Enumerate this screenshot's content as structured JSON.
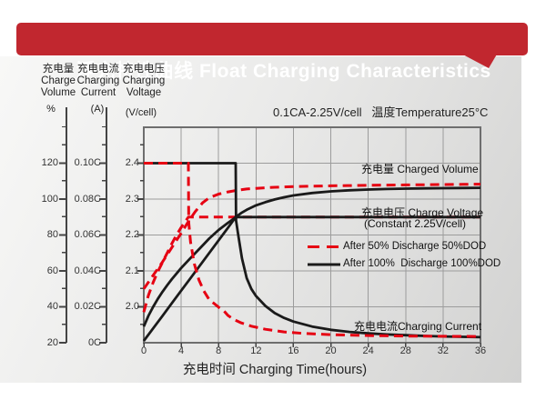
{
  "banner": {
    "title": "浮充特性曲线 Float Charging Characteristics",
    "bg_color": "#c1272f",
    "text_color": "#ffffff"
  },
  "axis_headers": {
    "volume": {
      "zh": "充电量",
      "en1": "Charge",
      "en2": "Volume",
      "unit": "%"
    },
    "current": {
      "zh": "充电电流",
      "en1": "Charging",
      "en2": "Current",
      "unit": "(A)"
    },
    "voltage": {
      "zh": "充电电压",
      "en1": "Charging",
      "en2": "Voltage",
      "unit": "(V/cell)"
    }
  },
  "condition_label": "0.1CA-2.25V/cell   温度Temperature25°C",
  "chart_data": {
    "type": "line",
    "title": "浮充特性曲线 Float Charging Characteristics",
    "x_axis": {
      "label": "充电时间 Charging Time(hours)",
      "range": [
        0,
        36
      ],
      "ticks": [
        0,
        4,
        8,
        12,
        16,
        20,
        24,
        28,
        32,
        36
      ],
      "grid": true
    },
    "y_axes": {
      "volume_pct": {
        "ticks": [
          120,
          100,
          80,
          60,
          40,
          20
        ],
        "range_at_plot": [
          20,
          140
        ]
      },
      "current_C": {
        "ticks": [
          "0.10C",
          "0.08C",
          "0.06C",
          "0.04C",
          "0.02C",
          "0C"
        ],
        "range_at_plot": [
          0,
          0.12
        ]
      },
      "voltage_V": {
        "ticks": [
          2.4,
          2.3,
          2.2,
          2.1,
          2.0
        ],
        "range_at_plot": [
          1.9,
          2.5
        ]
      }
    },
    "annotations": {
      "charged_volume": "充电量 Charged Volume",
      "charge_voltage": "充电电压 Charge Voltage",
      "charge_voltage_sub": "(Constant 2.25V/cell)",
      "charging_current": "充电电流Charging Current"
    },
    "legend": [
      {
        "label": "After 50% Discharge 50%DOD",
        "color": "#e60012",
        "dash": true
      },
      {
        "label": "After 100%  Discharge 100%DOD",
        "color": "#1a1a1a",
        "dash": false
      }
    ],
    "colors": {
      "red_curve": "#e60012",
      "black_curve": "#1a1a1a",
      "grid": "#9c9c9c",
      "frame": "#6e6e6e",
      "axis": "#444444"
    },
    "series": [
      {
        "name": "charged-volume-50dod",
        "axis": "volume_pct",
        "color": "#e60012",
        "dash": true,
        "points": [
          [
            0,
            50
          ],
          [
            1,
            57.5
          ],
          [
            2,
            65
          ],
          [
            3,
            73
          ],
          [
            4,
            81
          ],
          [
            4.77,
            87.5
          ],
          [
            5.5,
            93
          ],
          [
            6.3,
            98
          ],
          [
            7,
            100.7
          ],
          [
            8,
            102.8
          ],
          [
            9,
            104
          ],
          [
            10,
            104.9
          ],
          [
            11,
            105.6
          ],
          [
            12,
            106
          ],
          [
            14,
            106.6
          ],
          [
            16,
            107
          ],
          [
            18,
            107.2
          ],
          [
            20,
            107.4
          ],
          [
            24,
            107.7
          ],
          [
            28,
            107.9
          ],
          [
            32,
            108.1
          ],
          [
            36,
            108.3
          ]
        ]
      },
      {
        "name": "charge-voltage-50dod",
        "axis": "voltage_V",
        "color": "#e60012",
        "dash": true,
        "points": [
          [
            0,
            1.985
          ],
          [
            0.5,
            2.032
          ],
          [
            1,
            2.068
          ],
          [
            1.5,
            2.098
          ],
          [
            2,
            2.124
          ],
          [
            2.5,
            2.15
          ],
          [
            3,
            2.176
          ],
          [
            3.5,
            2.2
          ],
          [
            4,
            2.221
          ],
          [
            4.4,
            2.236
          ],
          [
            4.77,
            2.25
          ],
          [
            36,
            2.25
          ]
        ]
      },
      {
        "name": "charge-voltage-100dod",
        "axis": "voltage_V",
        "color": "#1a1a1a",
        "dash": false,
        "points": [
          [
            0,
            1.945
          ],
          [
            0.5,
            1.975
          ],
          [
            1,
            2.0
          ],
          [
            1.5,
            2.022
          ],
          [
            2,
            2.042
          ],
          [
            2.5,
            2.06
          ],
          [
            3,
            2.077
          ],
          [
            4,
            2.108
          ],
          [
            5,
            2.136
          ],
          [
            6,
            2.163
          ],
          [
            7,
            2.19
          ],
          [
            8,
            2.214
          ],
          [
            9,
            2.234
          ],
          [
            9.5,
            2.243
          ],
          [
            9.83,
            2.25
          ],
          [
            36,
            2.25
          ]
        ]
      },
      {
        "name": "charged-volume-100dod",
        "axis": "volume_pct",
        "color": "#1a1a1a",
        "dash": false,
        "points": [
          [
            0,
            21
          ],
          [
            1,
            28
          ],
          [
            2,
            35
          ],
          [
            3,
            42
          ],
          [
            4,
            49
          ],
          [
            5,
            56
          ],
          [
            6,
            63
          ],
          [
            7,
            70
          ],
          [
            8,
            77
          ],
          [
            9,
            84
          ],
          [
            9.83,
            90
          ],
          [
            10.5,
            92.5
          ],
          [
            11,
            94
          ],
          [
            12,
            96.5
          ],
          [
            13,
            98.3
          ],
          [
            14,
            99.8
          ],
          [
            15,
            101
          ],
          [
            16,
            102
          ],
          [
            18,
            103.4
          ],
          [
            20,
            104.3
          ],
          [
            22,
            104.9
          ],
          [
            24,
            105.3
          ],
          [
            26,
            105.6
          ],
          [
            28,
            105.8
          ],
          [
            30,
            106
          ],
          [
            32,
            106.1
          ],
          [
            34,
            106.2
          ],
          [
            36,
            106.3
          ]
        ]
      },
      {
        "name": "charging-current-100dod",
        "axis": "current_C",
        "color": "#1a1a1a",
        "dash": false,
        "points": [
          [
            0,
            0.1
          ],
          [
            9.83,
            0.1
          ],
          [
            9.87,
            0.068
          ],
          [
            10.1,
            0.06
          ],
          [
            10.5,
            0.047
          ],
          [
            11,
            0.036
          ],
          [
            11.5,
            0.03
          ],
          [
            12,
            0.026
          ],
          [
            13,
            0.0205
          ],
          [
            14,
            0.0165
          ],
          [
            15,
            0.0138
          ],
          [
            16,
            0.0118
          ],
          [
            18,
            0.009
          ],
          [
            20,
            0.0072
          ],
          [
            22,
            0.006
          ],
          [
            24,
            0.0052
          ],
          [
            26,
            0.0046
          ],
          [
            28,
            0.0042
          ],
          [
            30,
            0.0038
          ],
          [
            32,
            0.0035
          ],
          [
            34,
            0.0033
          ],
          [
            36,
            0.0031
          ]
        ]
      },
      {
        "name": "charging-current-50dod",
        "axis": "current_C",
        "color": "#e60012",
        "dash": true,
        "points": [
          [
            0,
            0.1
          ],
          [
            4.77,
            0.1
          ],
          [
            4.81,
            0.067
          ],
          [
            5,
            0.056
          ],
          [
            5.4,
            0.044
          ],
          [
            5.9,
            0.035
          ],
          [
            6.4,
            0.029
          ],
          [
            7,
            0.024
          ],
          [
            7.6,
            0.0215
          ],
          [
            8,
            0.0198
          ],
          [
            8.6,
            0.0175
          ],
          [
            9,
            0.0152
          ],
          [
            9.6,
            0.013
          ],
          [
            10.4,
            0.0111
          ],
          [
            11.5,
            0.0092
          ],
          [
            13,
            0.0075
          ],
          [
            15,
            0.006
          ],
          [
            17,
            0.0052
          ],
          [
            20,
            0.0045
          ],
          [
            24,
            0.004
          ],
          [
            28,
            0.0037
          ],
          [
            32,
            0.0036
          ],
          [
            36,
            0.0035
          ]
        ]
      }
    ]
  }
}
